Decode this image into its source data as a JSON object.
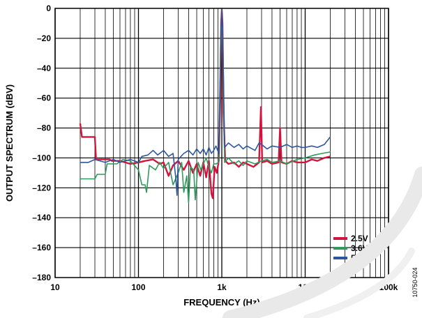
{
  "chart_data": {
    "type": "line",
    "xlabel": "FREQUENCY (Hz)",
    "ylabel": "OUTPUT SPECTRUM (dBV)",
    "xscale": "log",
    "xlim": [
      10,
      100000
    ],
    "ylim": [
      -180,
      0
    ],
    "x_ticks": [
      10,
      100,
      1000,
      10000,
      100000
    ],
    "x_tick_labels": [
      "10",
      "100",
      "1k",
      "10k",
      "100k"
    ],
    "y_ticks": [
      0,
      -20,
      -40,
      -60,
      -80,
      -100,
      -120,
      -140,
      -160,
      -180
    ],
    "y_tick_labels": [
      "0",
      "–20",
      "–40",
      "–60",
      "–80",
      "–100",
      "–120",
      "–140",
      "–160",
      "–180"
    ],
    "grid": true,
    "legend_position": "bottom-right",
    "figure_id": "10750-024",
    "series": [
      {
        "name": "2.5V",
        "color": "#d4143c",
        "points": [
          [
            20,
            -77
          ],
          [
            21,
            -86
          ],
          [
            30,
            -86
          ],
          [
            31,
            -101
          ],
          [
            45,
            -101
          ],
          [
            48,
            -102
          ],
          [
            60,
            -102
          ],
          [
            80,
            -104
          ],
          [
            100,
            -103
          ],
          [
            120,
            -102
          ],
          [
            150,
            -101
          ],
          [
            180,
            -104
          ],
          [
            200,
            -103
          ],
          [
            230,
            -112
          ],
          [
            260,
            -105
          ],
          [
            300,
            -102
          ],
          [
            350,
            -108
          ],
          [
            400,
            -102
          ],
          [
            450,
            -110
          ],
          [
            500,
            -104
          ],
          [
            550,
            -112
          ],
          [
            600,
            -103
          ],
          [
            650,
            -113
          ],
          [
            700,
            -102
          ],
          [
            750,
            -124
          ],
          [
            780,
            -127
          ],
          [
            820,
            -106
          ],
          [
            870,
            -110
          ],
          [
            920,
            -102
          ],
          [
            960,
            -60
          ],
          [
            980,
            -10
          ],
          [
            1000,
            -1
          ],
          [
            1020,
            -10
          ],
          [
            1050,
            -70
          ],
          [
            1100,
            -102
          ],
          [
            1200,
            -104
          ],
          [
            1400,
            -103
          ],
          [
            1600,
            -106
          ],
          [
            1800,
            -103
          ],
          [
            2000,
            -104
          ],
          [
            2400,
            -106
          ],
          [
            2800,
            -103
          ],
          [
            2950,
            -66
          ],
          [
            3050,
            -103
          ],
          [
            3500,
            -102
          ],
          [
            4000,
            -104
          ],
          [
            4800,
            -103
          ],
          [
            5000,
            -80
          ],
          [
            5200,
            -103
          ],
          [
            6000,
            -104
          ],
          [
            7000,
            -102
          ],
          [
            8000,
            -103
          ],
          [
            10000,
            -103
          ],
          [
            12000,
            -101
          ],
          [
            14000,
            -102
          ],
          [
            17000,
            -100
          ],
          [
            20000,
            -99
          ]
        ]
      },
      {
        "name": "3.6V",
        "color": "#2e9a5c",
        "points": [
          [
            20,
            -114
          ],
          [
            30,
            -114
          ],
          [
            32,
            -111
          ],
          [
            40,
            -111
          ],
          [
            42,
            -104
          ],
          [
            55,
            -104
          ],
          [
            65,
            -101
          ],
          [
            80,
            -102
          ],
          [
            100,
            -108
          ],
          [
            110,
            -118
          ],
          [
            120,
            -118
          ],
          [
            125,
            -123
          ],
          [
            135,
            -105
          ],
          [
            160,
            -108
          ],
          [
            180,
            -103
          ],
          [
            200,
            -107
          ],
          [
            230,
            -103
          ],
          [
            260,
            -118
          ],
          [
            300,
            -110
          ],
          [
            330,
            -103
          ],
          [
            350,
            -123
          ],
          [
            380,
            -112
          ],
          [
            400,
            -130
          ],
          [
            420,
            -106
          ],
          [
            460,
            -108
          ],
          [
            480,
            -128
          ],
          [
            520,
            -103
          ],
          [
            560,
            -108
          ],
          [
            600,
            -104
          ],
          [
            650,
            -100
          ],
          [
            700,
            -106
          ],
          [
            750,
            -110
          ],
          [
            800,
            -104
          ],
          [
            850,
            -104
          ],
          [
            920,
            -103
          ],
          [
            980,
            -15
          ],
          [
            1000,
            -1
          ],
          [
            1020,
            -15
          ],
          [
            1080,
            -103
          ],
          [
            1200,
            -100
          ],
          [
            1400,
            -104
          ],
          [
            1600,
            -102
          ],
          [
            1800,
            -105
          ],
          [
            2000,
            -102
          ],
          [
            2500,
            -104
          ],
          [
            3000,
            -102
          ],
          [
            3500,
            -101
          ],
          [
            4000,
            -103
          ],
          [
            5000,
            -102
          ],
          [
            6000,
            -104
          ],
          [
            8000,
            -101
          ],
          [
            10000,
            -100
          ],
          [
            13000,
            -98
          ],
          [
            16000,
            -97
          ],
          [
            20000,
            -96
          ]
        ]
      },
      {
        "name": "5V",
        "color": "#2d56a0",
        "points": [
          [
            20,
            -103
          ],
          [
            25,
            -103
          ],
          [
            30,
            -101
          ],
          [
            40,
            -103
          ],
          [
            50,
            -101
          ],
          [
            60,
            -103
          ],
          [
            80,
            -101
          ],
          [
            100,
            -103
          ],
          [
            110,
            -99
          ],
          [
            130,
            -98
          ],
          [
            150,
            -95
          ],
          [
            170,
            -98
          ],
          [
            200,
            -95
          ],
          [
            230,
            -99
          ],
          [
            260,
            -97
          ],
          [
            280,
            -113
          ],
          [
            290,
            -125
          ],
          [
            300,
            -101
          ],
          [
            350,
            -97
          ],
          [
            400,
            -95
          ],
          [
            450,
            -98
          ],
          [
            500,
            -94
          ],
          [
            550,
            -97
          ],
          [
            600,
            -94
          ],
          [
            650,
            -98
          ],
          [
            700,
            -93
          ],
          [
            750,
            -97
          ],
          [
            800,
            -95
          ],
          [
            850,
            -92
          ],
          [
            920,
            -97
          ],
          [
            970,
            -20
          ],
          [
            1000,
            -1
          ],
          [
            1030,
            -20
          ],
          [
            1080,
            -93
          ],
          [
            1200,
            -90
          ],
          [
            1400,
            -93
          ],
          [
            1600,
            -91
          ],
          [
            1800,
            -94
          ],
          [
            2000,
            -92
          ],
          [
            2500,
            -95
          ],
          [
            2800,
            -90
          ],
          [
            3000,
            -91
          ],
          [
            3500,
            -94
          ],
          [
            4000,
            -92
          ],
          [
            5000,
            -93
          ],
          [
            6000,
            -91
          ],
          [
            7000,
            -93
          ],
          [
            8000,
            -92
          ],
          [
            9000,
            -93
          ],
          [
            10000,
            -93
          ],
          [
            12000,
            -92
          ],
          [
            14000,
            -93
          ],
          [
            17000,
            -91
          ],
          [
            20000,
            -86
          ]
        ]
      }
    ]
  }
}
